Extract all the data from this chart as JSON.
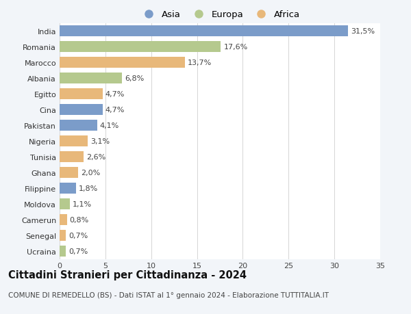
{
  "countries": [
    "India",
    "Romania",
    "Marocco",
    "Albania",
    "Egitto",
    "Cina",
    "Pakistan",
    "Nigeria",
    "Tunisia",
    "Ghana",
    "Filippine",
    "Moldova",
    "Camerun",
    "Senegal",
    "Ucraina"
  ],
  "values": [
    31.5,
    17.6,
    13.7,
    6.8,
    4.7,
    4.7,
    4.1,
    3.1,
    2.6,
    2.0,
    1.8,
    1.1,
    0.8,
    0.7,
    0.7
  ],
  "labels": [
    "31,5%",
    "17,6%",
    "13,7%",
    "6,8%",
    "4,7%",
    "4,7%",
    "4,1%",
    "3,1%",
    "2,6%",
    "2,0%",
    "1,8%",
    "1,1%",
    "0,8%",
    "0,7%",
    "0,7%"
  ],
  "continents": [
    "Asia",
    "Europa",
    "Africa",
    "Europa",
    "Africa",
    "Asia",
    "Asia",
    "Africa",
    "Africa",
    "Africa",
    "Asia",
    "Europa",
    "Africa",
    "Africa",
    "Europa"
  ],
  "colors": {
    "Asia": "#7b9cc9",
    "Europa": "#b5c98e",
    "Africa": "#e8b87a"
  },
  "legend_labels": [
    "Asia",
    "Europa",
    "Africa"
  ],
  "title": "Cittadini Stranieri per Cittadinanza - 2024",
  "subtitle": "COMUNE DI REMEDELLO (BS) - Dati ISTAT al 1° gennaio 2024 - Elaborazione TUTTITALIA.IT",
  "xlim": [
    0,
    35
  ],
  "xticks": [
    0,
    5,
    10,
    15,
    20,
    25,
    30,
    35
  ],
  "background_color": "#f2f5f9",
  "bar_background": "#ffffff",
  "grid_color": "#d5d5d5",
  "title_fontsize": 10.5,
  "subtitle_fontsize": 7.5,
  "label_fontsize": 8,
  "tick_fontsize": 8,
  "legend_fontsize": 9.5
}
